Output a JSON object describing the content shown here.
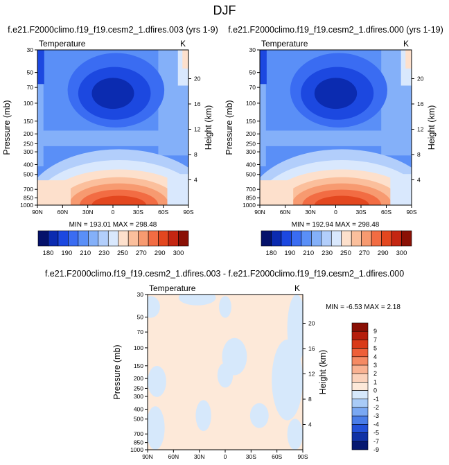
{
  "figure_title": "DJF",
  "chart_data": [
    {
      "type": "contour",
      "title": "f.e21.F2000climo.f19_f19.cesm2_1.dfires.003 (yrs 1-9)",
      "variable_label": "Temperature",
      "units": "K",
      "xlabel": "",
      "ylabel": "Pressure (mb)",
      "ylabel_right": "Height (km)",
      "x_ticks": [
        "90N",
        "60N",
        "30N",
        "0",
        "30S",
        "60S",
        "90S"
      ],
      "y_ticks": [
        30,
        50,
        70,
        100,
        150,
        200,
        250,
        300,
        400,
        500,
        700,
        850,
        1000
      ],
      "y_scale": "log",
      "ylim": [
        1000,
        30
      ],
      "height_ticks_km": [
        4,
        8,
        12,
        16,
        20
      ],
      "stats": "MIN = 193.01   MAX = 298.48",
      "colorbar_orientation": "horizontal",
      "colorbar_labels": [
        "180",
        "190",
        "210",
        "230",
        "250",
        "270",
        "290",
        "300"
      ]
    },
    {
      "type": "contour",
      "title": "f.e21.F2000climo.f19_f19.cesm2_1.dfires.000 (yrs 1-19)",
      "variable_label": "Temperature",
      "units": "K",
      "xlabel": "",
      "ylabel": "Pressure (mb)",
      "ylabel_right": "Height (km)",
      "x_ticks": [
        "90N",
        "60N",
        "30N",
        "0",
        "30S",
        "60S",
        "90S"
      ],
      "y_ticks": [
        30,
        50,
        70,
        100,
        150,
        200,
        250,
        300,
        400,
        500,
        700,
        850,
        1000
      ],
      "y_scale": "log",
      "ylim": [
        1000,
        30
      ],
      "height_ticks_km": [
        4,
        8,
        12,
        16,
        20
      ],
      "stats": "MIN = 192.94   MAX = 298.48",
      "colorbar_orientation": "horizontal",
      "colorbar_labels": [
        "180",
        "190",
        "210",
        "230",
        "250",
        "270",
        "290",
        "300"
      ]
    },
    {
      "type": "contour",
      "title": "f.e21.F2000climo.f19_f19.cesm2_1.dfires.003 - f.e21.F2000climo.f19_f19.cesm2_1.dfires.000",
      "variable_label": "Temperature",
      "units": "K",
      "xlabel": "",
      "ylabel": "Pressure (mb)",
      "ylabel_right": "Height (km)",
      "x_ticks": [
        "90N",
        "60N",
        "30N",
        "0",
        "30S",
        "60S",
        "90S"
      ],
      "y_ticks": [
        30,
        50,
        70,
        100,
        150,
        200,
        250,
        300,
        400,
        500,
        700,
        850,
        1000
      ],
      "y_scale": "log",
      "ylim": [
        1000,
        30
      ],
      "height_ticks_km": [
        4,
        8,
        12,
        16,
        20
      ],
      "stats": "MIN =  -6.53   MAX =   2.18",
      "colorbar_orientation": "vertical",
      "colorbar_labels": [
        "9",
        "7",
        "5",
        "4",
        "3",
        "2",
        "1",
        "0",
        "-1",
        "-2",
        "-3",
        "-4",
        "-5",
        "-7",
        "-9"
      ]
    }
  ],
  "colors": {
    "abs_scale": [
      "#05126b",
      "#0b2bb0",
      "#1c48e0",
      "#3a6cf2",
      "#5a8ff7",
      "#84b0f9",
      "#b2cefb",
      "#d9e8fd",
      "#fde0cc",
      "#fbbf9c",
      "#f79a70",
      "#f26c43",
      "#e3471f",
      "#c42611",
      "#8a1005"
    ],
    "diff_scale": [
      "#8a1005",
      "#b51d0c",
      "#d93a18",
      "#ee5f38",
      "#f58a63",
      "#f9b292",
      "#fbd2bb",
      "#fde9d9",
      "#d6e8fb",
      "#a9cbf7",
      "#7aa8f3",
      "#4a7de8",
      "#2351d8",
      "#1031a5",
      "#061870"
    ]
  }
}
